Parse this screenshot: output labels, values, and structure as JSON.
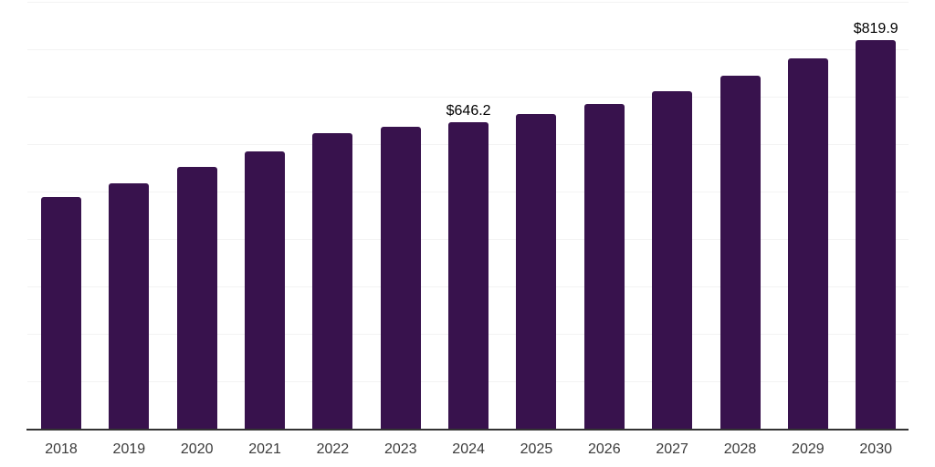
{
  "chart_data": {
    "type": "bar",
    "categories": [
      "2018",
      "2019",
      "2020",
      "2021",
      "2022",
      "2023",
      "2024",
      "2025",
      "2026",
      "2027",
      "2028",
      "2029",
      "2030"
    ],
    "values": [
      488,
      518,
      552,
      585,
      623,
      636,
      646.2,
      663,
      685,
      711,
      745,
      781,
      819.9
    ],
    "annotations": [
      {
        "index": 6,
        "text": "$646.2"
      },
      {
        "index": 12,
        "text": "$819.9"
      }
    ],
    "title": "",
    "xlabel": "",
    "ylabel": "",
    "ylim": [
      0,
      900
    ],
    "gridline_step": 100,
    "grid": "horizontal-only",
    "legend": "none",
    "colors": {
      "bar": "#38124D",
      "gridline": "#f3f3f3",
      "axis_line": "#333333",
      "tick_label": "#3a3a3a",
      "value_label": "#000000",
      "background": "#ffffff"
    }
  }
}
